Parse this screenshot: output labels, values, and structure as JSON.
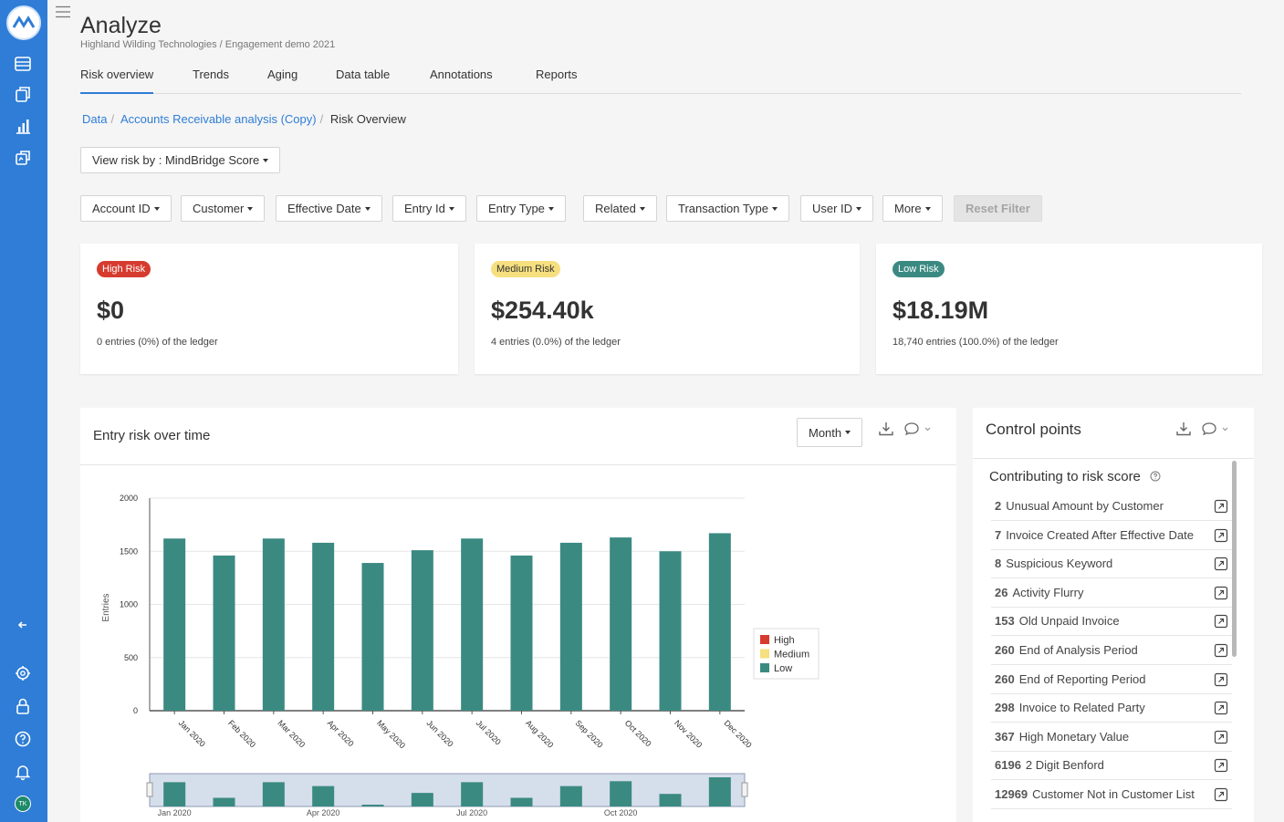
{
  "header": {
    "title": "Analyze",
    "subtitle": "Highland Wilding Technologies / Engagement demo 2021"
  },
  "tabs": [
    "Risk overview",
    "Trends",
    "Aging",
    "Data table",
    "Annotations",
    "Reports"
  ],
  "active_tab": "Risk overview",
  "breadcrumb": {
    "items": [
      "Data",
      "Accounts Receivable analysis (Copy)",
      "Risk Overview"
    ],
    "separator": "/"
  },
  "view_risk_label": "View risk by : MindBridge Score",
  "filters": [
    "Account ID",
    "Customer",
    "Effective Date",
    "Entry Id",
    "Entry Type",
    "Related",
    "Transaction Type",
    "User ID",
    "More"
  ],
  "reset_filter_label": "Reset Filter",
  "risk_cards": [
    {
      "badge": "High Risk",
      "amount": "$0",
      "desc": "0 entries (0%) of the ledger",
      "color": "#d63b2f"
    },
    {
      "badge": "Medium Risk",
      "amount": "$254.40k",
      "desc": "4 entries (0.0%) of the ledger",
      "color": "#f6df7e"
    },
    {
      "badge": "Low Risk",
      "amount": "$18.19M",
      "desc": "18,740 entries (100.0%) of the ledger",
      "color": "#3b8a82"
    }
  ],
  "chart_panel": {
    "title": "Entry risk over time",
    "period_label": "Month"
  },
  "chart_data": {
    "type": "bar",
    "categories": [
      "Jan 2020",
      "Feb 2020",
      "Mar 2020",
      "Apr 2020",
      "May 2020",
      "Jun 2020",
      "Jul 2020",
      "Aug 2020",
      "Sep 2020",
      "Oct 2020",
      "Nov 2020",
      "Dec 2020"
    ],
    "series": [
      {
        "name": "High",
        "color": "#d63b2f",
        "values": [
          0,
          0,
          0,
          0,
          0,
          0,
          0,
          0,
          0,
          0,
          0,
          0
        ]
      },
      {
        "name": "Medium",
        "color": "#f6df7e",
        "values": [
          0,
          0,
          0,
          0,
          0,
          0,
          0,
          0,
          0,
          0,
          0,
          0
        ]
      },
      {
        "name": "Low",
        "color": "#3b8a82",
        "values": [
          1620,
          1460,
          1620,
          1580,
          1390,
          1510,
          1620,
          1460,
          1580,
          1630,
          1500,
          1670
        ]
      }
    ],
    "ylabel": "Entries",
    "ylim": [
      0,
      2000
    ],
    "yticks": [
      0,
      500,
      1000,
      1500,
      2000
    ],
    "navigator_labels": [
      "Jan 2020",
      "Apr 2020",
      "Jul 2020",
      "Oct 2020"
    ],
    "legend": "right"
  },
  "control_points": {
    "title": "Control points",
    "subtitle": "Contributing to risk score",
    "items": [
      {
        "count": "2",
        "label": "Unusual Amount by Customer"
      },
      {
        "count": "7",
        "label": "Invoice Created After Effective Date"
      },
      {
        "count": "8",
        "label": "Suspicious Keyword"
      },
      {
        "count": "26",
        "label": "Activity Flurry"
      },
      {
        "count": "153",
        "label": "Old Unpaid Invoice"
      },
      {
        "count": "260",
        "label": "End of Analysis Period"
      },
      {
        "count": "260",
        "label": "End of Reporting Period"
      },
      {
        "count": "298",
        "label": "Invoice to Related Party"
      },
      {
        "count": "367",
        "label": "High Monetary Value"
      },
      {
        "count": "6196",
        "label": "2 Digit Benford"
      },
      {
        "count": "12969",
        "label": "Customer Not in Customer List"
      }
    ]
  },
  "user": {
    "initials": "TK"
  }
}
